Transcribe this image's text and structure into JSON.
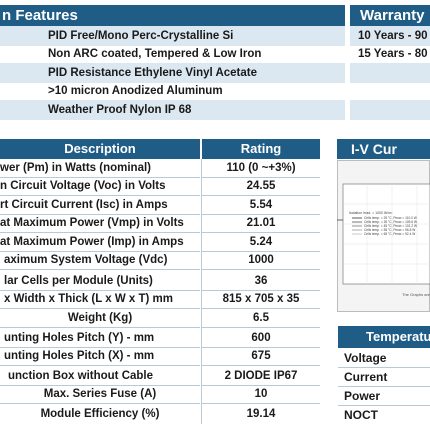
{
  "features": {
    "header": "n Features",
    "items": [
      "PID Free/Mono Perc-Crystalline Si",
      "Non ARC coated, Tempered & Low Iron",
      "PID Resistance Ethylene Vinyl Acetate",
      ">10 micron Anodized Aluminum",
      "Weather Proof Nylon IP 68"
    ]
  },
  "warranty": {
    "header": "Warranty",
    "items": [
      "10 Years - 90",
      "15 Years - 80"
    ]
  },
  "specs": {
    "col_description": "Description",
    "col_rating": "Rating",
    "rows": [
      {
        "desc": "wer (Pm) in Watts (nominal)",
        "rating": "110 (0 ~+3%)"
      },
      {
        "desc": "n Circuit Voltage (Voc) in Volts",
        "rating": "24.55"
      },
      {
        "desc": "rt Circuit Current (Isc) in Amps",
        "rating": "5.54"
      },
      {
        "desc": "at Maximum Power (Vmp) in Volts",
        "rating": "21.01"
      },
      {
        "desc": "at Maximum Power (Imp) in Amps",
        "rating": "5.24"
      },
      {
        "desc": "aximum System Voltage (Vdc)",
        "rating": "1000"
      },
      {
        "desc": "lar Cells per Module (Units)",
        "rating": "36"
      },
      {
        "desc": "x Width x Thick (L x W x T) mm",
        "rating": "815 x 705 x 35"
      },
      {
        "desc": "Weight  (Kg)",
        "rating": "6.5"
      },
      {
        "desc": "unting Holes Pitch (Y) - mm",
        "rating": "600"
      },
      {
        "desc": "unting Holes Pitch (X) - mm",
        "rating": "675"
      },
      {
        "desc": "unction Box without Cable",
        "rating": "2 DIODE IP67"
      },
      {
        "desc": "Max. Series Fuse (A)",
        "rating": "10"
      },
      {
        "desc": "Module Efficiency (%)",
        "rating": "19.14"
      }
    ]
  },
  "iv": {
    "header": "I-V Cur",
    "legend": [
      "Isolation Irrad. = 1000 W/m²",
      "Cells temp. = 25 °C, Pmax = 110.0 W",
      "Cells temp. = 35 °C, Pmax = 105.6 W",
      "Cells temp. = 45 °C, Pmax = 101.2 W",
      "Cells temp. = 55 °C, Pmax = 96.8 W",
      "Cells temp. = 65 °C, Pmax = 92.4 W"
    ],
    "note": "The Graphs are f"
  },
  "temperature": {
    "header": "Temperatu",
    "items": [
      "Voltage",
      "Current",
      "Power",
      "NOCT"
    ]
  },
  "colors": {
    "header_blue": "#1f5d87",
    "row_alt": "#dbe7f1"
  }
}
